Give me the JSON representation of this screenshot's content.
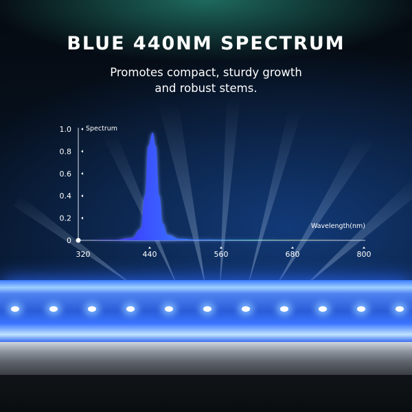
{
  "title": "BLUE 440NM SPECTRUM",
  "subtitle_line1": "Promotes compact, sturdy growth",
  "subtitle_line2": "and robust stems.",
  "colors": {
    "peak": "#3b47ff",
    "led_glow": "#7fb8ff",
    "background": "#071426"
  },
  "chart_data": {
    "type": "area",
    "title": "",
    "xlabel": "Wavelength(nm)",
    "ylabel": "Spectrum",
    "xlim": [
      320,
      800
    ],
    "ylim": [
      0,
      1.0
    ],
    "x_ticks": [
      "320",
      "440",
      "560",
      "680",
      "800"
    ],
    "y_ticks": [
      "0",
      "0.2",
      "0.4",
      "0.6",
      "0.8",
      "1.0"
    ],
    "grid": false,
    "x": [
      320,
      380,
      410,
      425,
      432,
      438,
      445,
      450,
      456,
      462,
      470,
      490,
      520,
      600,
      700,
      800
    ],
    "y": [
      0,
      0.005,
      0.02,
      0.1,
      0.4,
      0.85,
      0.97,
      0.85,
      0.4,
      0.15,
      0.05,
      0.015,
      0.008,
      0.005,
      0.003,
      0
    ]
  }
}
